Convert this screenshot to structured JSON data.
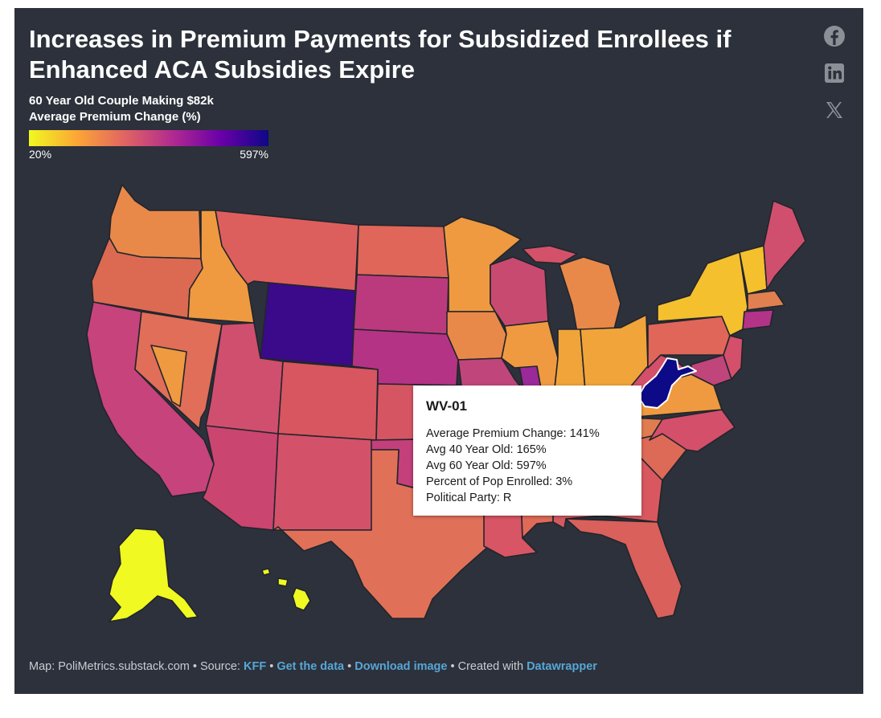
{
  "title": "Increases in Premium Payments for Subsidized Enrollees if Enhanced ACA Subsidies Expire",
  "subtitle_line1": "60 Year Old Couple Making $82k",
  "subtitle_line2": "Average Premium Change (%)",
  "legend": {
    "min_label": "20%",
    "max_label": "597%",
    "min_value": 20,
    "max_value": 597,
    "colors": [
      "#f0f921",
      "#fca636",
      "#e16462",
      "#b12a90",
      "#6a00a8",
      "#0d0887"
    ]
  },
  "share_icons": [
    "facebook-icon",
    "linkedin-icon",
    "x-icon"
  ],
  "colors": {
    "background": "#2c313b",
    "state_border": "#22252c",
    "highlight_border": "#ffffff",
    "link": "#57a6d6"
  },
  "tooltip": {
    "title": "WV-01",
    "rows": [
      "Average Premium Change: 141%",
      "Avg 40 Year Old: 165%",
      "Avg 60 Year Old: 597%",
      "Percent of Pop Enrolled: 3%",
      "Political Party: R"
    ]
  },
  "footer": {
    "map_credit": "Map: PoliMetrics.substack.com",
    "source_prefix": "Source:",
    "source_link": "KFF",
    "get_data": "Get the data",
    "download": "Download image",
    "created_prefix": "Created with",
    "created_link": "Datawrapper",
    "sep": "•"
  }
}
